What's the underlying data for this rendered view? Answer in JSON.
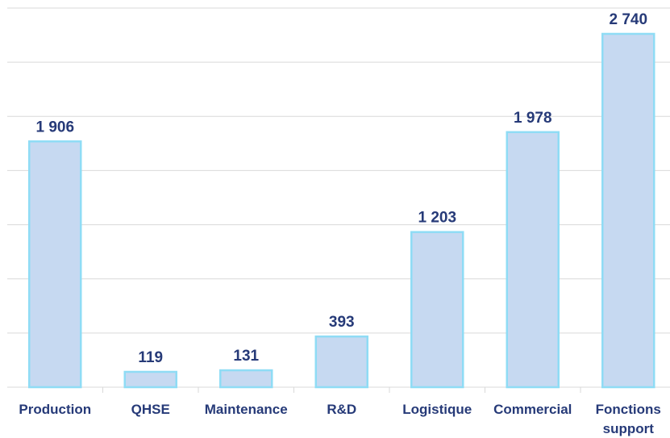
{
  "chart_data": {
    "type": "bar",
    "categories": [
      "Production",
      "QHSE",
      "Maintenance",
      "R&D",
      "Logistique",
      "Commercial",
      "Fonctions support"
    ],
    "values": [
      1906,
      119,
      131,
      393,
      1203,
      1978,
      2740
    ],
    "value_labels": [
      "1 906",
      "119",
      "131",
      "393",
      "1 203",
      "1 978",
      "2 740"
    ],
    "color": "#c6d9f1",
    "ylim": [
      0,
      2940
    ],
    "yticks": [
      0,
      420,
      840,
      1260,
      1680,
      2100,
      2520,
      2940
    ],
    "grid": true
  }
}
